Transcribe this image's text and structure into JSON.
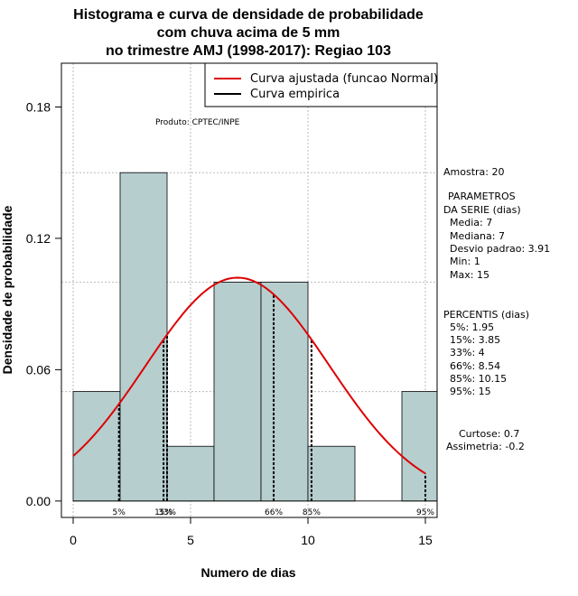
{
  "chart_data": {
    "type": "bar",
    "title": [
      "Histograma e curva de densidade de probabilidade",
      "com chuva acima de 5 mm",
      "no trimestre AMJ (1998-2017): Regiao 103"
    ],
    "xlabel": "Numero de dias",
    "ylabel": "Densidade de probabilidade",
    "xlim": [
      -0.5,
      15.5
    ],
    "ylim": [
      -0.0075,
      0.2
    ],
    "xticks": [
      0,
      5,
      10,
      15
    ],
    "xtick_labels": [
      "0",
      "5",
      "10",
      "15"
    ],
    "yticks": [
      0.0,
      0.06,
      0.12,
      0.18
    ],
    "ytick_labels": [
      "0.00",
      "0.06",
      "0.12",
      "0.18"
    ],
    "grid": true,
    "grid_y": [
      0.05,
      0.1,
      0.15
    ],
    "bins": [
      {
        "x0": 0,
        "x1": 2,
        "density": 0.05
      },
      {
        "x0": 2,
        "x1": 4,
        "density": 0.15
      },
      {
        "x0": 4,
        "x1": 6,
        "density": 0.025
      },
      {
        "x0": 6,
        "x1": 8,
        "density": 0.1
      },
      {
        "x0": 8,
        "x1": 10,
        "density": 0.1
      },
      {
        "x0": 10,
        "x1": 12,
        "density": 0.025
      },
      {
        "x0": 12,
        "x1": 14,
        "density": 0.0
      },
      {
        "x0": 14,
        "x1": 16,
        "density": 0.05
      }
    ],
    "bar_color": "#b7cece",
    "normal_curve": {
      "mean": 7,
      "sd": 3.91,
      "x_from": 0,
      "x_to": 15,
      "color": "#dd0000"
    },
    "percentile_lines": [
      {
        "label": "5%",
        "x": 1.95
      },
      {
        "label": "15%",
        "x": 3.85
      },
      {
        "label": "33%",
        "x": 4
      },
      {
        "label": "66%",
        "x": 8.54
      },
      {
        "label": "85%",
        "x": 10.15
      },
      {
        "label": "95%",
        "x": 15
      }
    ],
    "legend": {
      "placement": "top-right",
      "entries": [
        {
          "label": "Curva ajustada (funcao Normal)",
          "color": "#dd0000"
        },
        {
          "label": "Curva empirica",
          "color": "#000000"
        }
      ]
    },
    "annotation": "Produto: CPTEC/INPE"
  },
  "side_panel": {
    "amostra": "Amostra: 20",
    "param_title_1": "PARAMETROS",
    "param_title_2": "DA SERIE (dias)",
    "media": "Media: 7",
    "mediana": "Mediana: 7",
    "desvio": "Desvio padrao: 3.91",
    "min": "Min: 1",
    "max": "Max: 15",
    "perc_title": "PERCENTIS (dias)",
    "p5": "5%: 1.95",
    "p15": "15%: 3.85",
    "p33": "33%: 4",
    "p66": "66%: 8.54",
    "p85": "85%: 10.15",
    "p95": "95%: 15",
    "curtose": "Curtose: 0.7",
    "assimetria": "Assimetria: -0.2"
  }
}
